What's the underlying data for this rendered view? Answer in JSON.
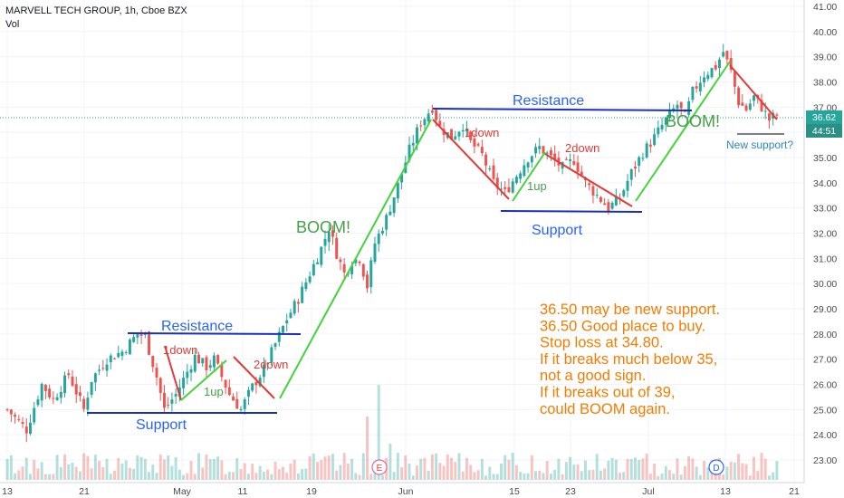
{
  "header": {
    "symbol": "MARVELL TECH GROUP, 1h, Cboe BZX",
    "volume_label": "Vol"
  },
  "price_badges": {
    "last_price": "36.62",
    "countdown": "44:51"
  },
  "chart_data": {
    "type": "candlestick",
    "y_axis": {
      "ticks": [
        "41.00",
        "40.00",
        "39.00",
        "38.00",
        "37.00",
        "36.00",
        "35.00",
        "34.00",
        "33.00",
        "32.00",
        "31.00",
        "30.00",
        "29.00",
        "28.00",
        "27.00",
        "26.00",
        "25.00",
        "24.00",
        "23.00"
      ],
      "range": [
        22.7,
        41.2
      ]
    },
    "x_axis": {
      "ticks": [
        "13",
        "21",
        "May",
        "11",
        "19",
        "Jun",
        "15",
        "23",
        "Jul",
        "13",
        "21"
      ]
    },
    "price_path": [
      [
        0,
        25.0
      ],
      [
        5,
        24.2
      ],
      [
        9,
        26.0
      ],
      [
        12,
        25.4
      ],
      [
        16,
        26.4
      ],
      [
        20,
        25.0
      ],
      [
        22,
        26.2
      ],
      [
        26,
        27.0
      ],
      [
        30,
        27.3
      ],
      [
        34,
        28.0
      ],
      [
        36,
        27.9
      ],
      [
        39,
        26.3
      ],
      [
        41,
        25.0
      ],
      [
        44,
        25.6
      ],
      [
        47,
        26.5
      ],
      [
        49,
        27.1
      ],
      [
        52,
        26.7
      ],
      [
        54,
        27.0
      ],
      [
        58,
        25.6
      ],
      [
        61,
        25.0
      ],
      [
        64,
        25.9
      ],
      [
        67,
        26.6
      ],
      [
        70,
        27.6
      ],
      [
        73,
        28.6
      ],
      [
        76,
        29.4
      ],
      [
        79,
        30.4
      ],
      [
        82,
        31.4
      ],
      [
        84,
        32.2
      ],
      [
        86,
        31.2
      ],
      [
        88,
        30.4
      ],
      [
        90,
        30.9
      ],
      [
        92,
        31.0
      ],
      [
        94,
        29.9
      ],
      [
        96,
        31.6
      ],
      [
        99,
        32.6
      ],
      [
        102,
        33.9
      ],
      [
        105,
        35.3
      ],
      [
        108,
        36.4
      ],
      [
        111,
        37.0
      ],
      [
        113,
        36.2
      ],
      [
        116,
        35.8
      ],
      [
        119,
        36.3
      ],
      [
        121,
        35.6
      ],
      [
        124,
        35.1
      ],
      [
        127,
        34.0
      ],
      [
        130,
        33.6
      ],
      [
        133,
        34.3
      ],
      [
        136,
        35.0
      ],
      [
        139,
        35.4
      ],
      [
        142,
        35.0
      ],
      [
        145,
        34.6
      ],
      [
        148,
        34.9
      ],
      [
        151,
        34.0
      ],
      [
        154,
        33.5
      ],
      [
        157,
        33.0
      ],
      [
        160,
        33.4
      ],
      [
        163,
        34.4
      ],
      [
        166,
        35.2
      ],
      [
        169,
        35.8
      ],
      [
        172,
        36.5
      ],
      [
        175,
        37.1
      ],
      [
        177,
        36.6
      ],
      [
        179,
        37.6
      ],
      [
        182,
        38.3
      ],
      [
        185,
        38.6
      ],
      [
        187,
        39.2
      ],
      [
        189,
        38.4
      ],
      [
        191,
        37.2
      ],
      [
        193,
        36.9
      ],
      [
        195,
        37.4
      ],
      [
        197,
        37.0
      ],
      [
        199,
        36.5
      ],
      [
        201,
        36.7
      ]
    ],
    "volume_spikes": [
      [
        25,
        14
      ],
      [
        61,
        12
      ],
      [
        94,
        70
      ],
      [
        97,
        105
      ],
      [
        100,
        40
      ],
      [
        165,
        22
      ],
      [
        186,
        24
      ]
    ]
  },
  "annotations": {
    "resistance_left": "Resistance",
    "support_left": "Support",
    "down_1_left": "1down",
    "up_1_left": "1up",
    "down_2_left": "2down",
    "boom_middle": "BOOM!",
    "resistance_mid": "Resistance",
    "down_1_mid": "1down",
    "up_1_mid": "1up",
    "down_2_mid": "2down",
    "support_mid": "Support",
    "boom_right": "BOOM!",
    "new_support": "New support?",
    "note_lines": [
      "36.50 may be new support.",
      "36.50 Good place to buy.",
      "Stop loss at 34.80.",
      "If it breaks much below 35,",
      "not a good sign.",
      "If it breaks out of 39,",
      "could BOOM again."
    ],
    "earnings_marker": "E",
    "dividend_marker": "D"
  },
  "colors": {
    "up": "#26a69a",
    "down": "#ef5350",
    "trend_red": "#e53935",
    "trend_green": "#43d43c",
    "level_blue": "#1b2fb8",
    "annotation_blue": "#2962ff",
    "note_orange": "#f57c00",
    "badge_teal": "#26a69a",
    "badge_dark": "#2b8f84"
  }
}
